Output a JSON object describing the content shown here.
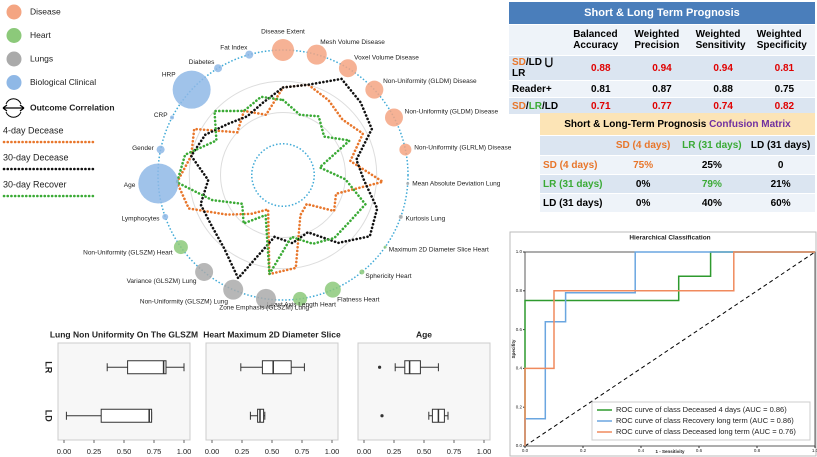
{
  "chart_data": [
    {
      "type": "radar",
      "groups": [
        {
          "name": "Disease",
          "color": "#f4a582"
        },
        {
          "name": "Heart",
          "color": "#8cc97a"
        },
        {
          "name": "Lungs",
          "color": "#aaaaaa"
        },
        {
          "name": "Biological Clinical",
          "color": "#8fb8e6"
        }
      ],
      "outcome_label": "Outcome Correlation",
      "features": [
        "Disease Extent",
        "Mesh Volume Disease",
        "Voxel Volume Disease",
        "Non-Uniformity (GLDM) Disease",
        "Non-Uniformity (GLDM) Disease",
        "Non-Uniformity (GLRLM) Disease",
        "Mean Absolute Deviation Lung",
        "Kurtosis Lung",
        "Maximum 2D Diameter Slice Heart",
        "Sphericity Heart",
        "Flatness Heart",
        "Least Axis Length Heart",
        "Zone Emphasis (GLSZM) Lung",
        "Non-Uniformity (GLSZM) Lung",
        "Variance (GLSZM) Lung",
        "Non-Uniformity (GLSZM) Heart",
        "Lymphocytes",
        "Age",
        "Gender",
        "CRP",
        "HRP",
        "Diabetes",
        "Fat Index"
      ],
      "feature_groups": [
        "Disease",
        "Disease",
        "Disease",
        "Disease",
        "Disease",
        "Disease",
        "Lungs",
        "Lungs",
        "Heart",
        "Heart",
        "Heart",
        "Heart",
        "Lungs",
        "Lungs",
        "Lungs",
        "Heart",
        "Biological Clinical",
        "Biological Clinical",
        "Biological Clinical",
        "Biological Clinical",
        "Biological Clinical",
        "Biological Clinical",
        "Biological Clinical"
      ],
      "sizes": [
        11,
        10,
        9,
        9,
        9,
        6,
        1.5,
        2,
        1.5,
        2.5,
        8,
        7,
        10,
        10,
        9,
        7,
        3,
        20,
        4,
        2,
        19,
        4,
        4
      ],
      "rlim": [
        0,
        1
      ],
      "rticks": [
        0.25,
        0.5,
        0.75
      ],
      "series": [
        {
          "name": "4-day Decease",
          "color": "#e8762b",
          "values": [
            0.7,
            0.75,
            0.7,
            0.65,
            0.72,
            0.55,
            0.8,
            0.45,
            0.5,
            0.3,
            0.35,
            0.75,
            0.8,
            0.3,
            0.4,
            0.55,
            0.8,
            0.85,
            0.75,
            0.8,
            0.5,
            0.6,
            0.5
          ]
        },
        {
          "name": "30-day Decease",
          "color": "#111111",
          "values": [
            0.7,
            0.75,
            0.9,
            0.85,
            0.8,
            0.6,
            0.65,
            0.8,
            0.85,
            0.7,
            0.5,
            0.55,
            0.5,
            0.9,
            0.75,
            0.7,
            0.7,
            0.6,
            0.75,
            0.7,
            0.6,
            0.55,
            0.6
          ]
        },
        {
          "name": "30-day Recover",
          "color": "#3aaa35",
          "values": [
            0.6,
            0.5,
            0.55,
            0.45,
            0.6,
            0.3,
            0.5,
            0.7,
            0.65,
            0.65,
            0.6,
            0.5,
            0.8,
            0.35,
            0.5,
            0.4,
            0.6,
            0.85,
            0.8,
            0.6,
            0.75,
            0.6,
            0.65
          ]
        }
      ]
    },
    {
      "type": "box",
      "title": "Lung Non Uniformity On The GLSZM",
      "categories": [
        "LR",
        "LD"
      ],
      "boxes": [
        {
          "whislo": 0.36,
          "q1": 0.53,
          "med": 0.83,
          "q3": 0.85,
          "whishi": 1.0,
          "outliers": []
        },
        {
          "whislo": 0.02,
          "q1": 0.31,
          "med": 0.71,
          "q3": 0.73,
          "whishi": 0.73,
          "outliers": []
        }
      ],
      "xlim": [
        -0.05,
        1.05
      ],
      "xticks": [
        {
          "value": 0,
          "label": "0.00"
        },
        0.25,
        {
          "value": 0.5,
          "label": "0.50"
        },
        0.75,
        {
          "value": 1,
          "label": "1.00"
        }
      ]
    },
    {
      "type": "box",
      "title": "Heart Maximum 2D Diameter Slice",
      "boxes": [
        {
          "whislo": 0.24,
          "q1": 0.42,
          "med": 0.51,
          "q3": 0.66,
          "whishi": 0.77,
          "outliers": []
        },
        {
          "whislo": 0.32,
          "q1": 0.38,
          "med": 0.4,
          "q3": 0.43,
          "whishi": 0.44,
          "outliers": []
        }
      ],
      "xlim": [
        -0.05,
        1.05
      ],
      "xticks": [
        {
          "value": 0,
          "label": "0.00"
        },
        0.25,
        {
          "value": 0.5,
          "label": "0.50"
        },
        0.75,
        {
          "value": 1,
          "label": "1.00"
        }
      ]
    },
    {
      "type": "box",
      "title": "Age",
      "boxes": [
        {
          "whislo": 0.26,
          "q1": 0.34,
          "med": 0.38,
          "q3": 0.47,
          "whishi": 0.62,
          "outliers": [
            0.13
          ]
        },
        {
          "whislo": 0.54,
          "q1": 0.57,
          "med": 0.62,
          "q3": 0.67,
          "whishi": 0.7,
          "outliers": [
            0.15
          ]
        }
      ],
      "xlim": [
        -0.05,
        1.05
      ],
      "xticks": [
        {
          "value": 0,
          "label": "0.00"
        },
        0.25,
        {
          "value": 0.5,
          "label": "0.50"
        },
        0.75,
        {
          "value": 1,
          "label": "1.00"
        }
      ]
    },
    {
      "type": "roc",
      "title": "Hierarchical Classification",
      "x_label": "1 - Sensitivity",
      "y_label": "Specifity",
      "xlim": [
        0,
        1
      ],
      "ylim": [
        0,
        1
      ],
      "xticks": [
        {
          "value": 0,
          "label": "0.0"
        },
        0.2,
        0.4,
        0.6,
        0.8,
        {
          "value": 1,
          "label": "1.0"
        }
      ],
      "yticks": [
        {
          "value": 0,
          "label": "0.0"
        },
        0.2,
        0.4,
        0.6,
        0.8,
        {
          "value": 1,
          "label": "1.0"
        }
      ],
      "series": [
        {
          "name": "ROC curve of class Deceased 4 days (AUC = 0.86)",
          "color": "#2e9a2e",
          "x": [
            0,
            0,
            0.53,
            0.53,
            0.64,
            0.64,
            1
          ],
          "values": [
            0,
            0.75,
            0.75,
            0.875,
            0.875,
            1,
            1
          ]
        },
        {
          "name": "ROC curve of class Recovery long term (AUC = 0.86)",
          "color": "#6aa6e0",
          "x": [
            0,
            0,
            0.07,
            0.07,
            0.14,
            0.14,
            0.38,
            0.38,
            1
          ],
          "values": [
            0,
            0.14,
            0.14,
            0.64,
            0.64,
            0.79,
            0.79,
            1,
            1
          ]
        },
        {
          "name": "ROC curve of class Deceased long term (AUC = 0.76)",
          "color": "#f08a5d",
          "x": [
            0,
            0,
            0.1,
            0.1,
            0.72,
            0.72,
            1
          ],
          "values": [
            0,
            0.4,
            0.4,
            0.8,
            0.8,
            1,
            1
          ]
        }
      ]
    }
  ],
  "prognosis_table": {
    "title": "Short & Long Term Prognosis",
    "columns": [
      "Balanced Accuracy",
      "Weighted Precision",
      "Weighted Sensitivity",
      "Weighted Specificity"
    ],
    "rows": [
      {
        "label_parts": [
          {
            "text": "SD",
            "color": "#e8762b"
          },
          {
            "text": "/LD ⋃ LR",
            "color": "#000000"
          }
        ],
        "color": "#e00000",
        "values": [
          0.88,
          0.94,
          0.94,
          0.81
        ]
      },
      {
        "label_parts": [
          {
            "text": "Reader+",
            "color": "#000000"
          }
        ],
        "color": "#000000",
        "values": [
          0.81,
          0.87,
          0.88,
          0.75
        ]
      },
      {
        "label_parts": [
          {
            "text": "SD",
            "color": "#e8762b"
          },
          {
            "text": "/",
            "color": "#000000"
          },
          {
            "text": "LR",
            "color": "#3aaa35"
          },
          {
            "text": "/LD",
            "color": "#000000"
          }
        ],
        "color": "#e00000",
        "values": [
          0.71,
          0.77,
          0.74,
          0.82
        ]
      }
    ]
  },
  "confusion_table": {
    "title_parts": [
      {
        "text": "Short & Long-Term Prognosis",
        "color": "#000000"
      },
      {
        "text": "Confusion Matrix",
        "color": "#7030a0"
      }
    ],
    "columns": [
      {
        "text": "SD (4 days)",
        "color": "#e8762b"
      },
      {
        "text": "LR (31 days)",
        "color": "#3aaa35"
      },
      {
        "text": "LD (31 days)",
        "color": "#000000"
      }
    ],
    "rows": [
      {
        "label": {
          "text": "SD (4 days)",
          "color": "#e8762b"
        },
        "cells": [
          {
            "text": "75%",
            "color": "#e8762b"
          },
          {
            "text": "25%",
            "color": "#000000"
          },
          {
            "text": "0",
            "color": "#000000"
          }
        ]
      },
      {
        "label": {
          "text": "LR (31 days)",
          "color": "#3aaa35"
        },
        "cells": [
          {
            "text": "0%",
            "color": "#000000"
          },
          {
            "text": "79%",
            "color": "#3aaa35"
          },
          {
            "text": "21%",
            "color": "#000000"
          }
        ]
      },
      {
        "label": {
          "text": "LD (31 days)",
          "color": "#000000"
        },
        "cells": [
          {
            "text": "0%",
            "color": "#000000"
          },
          {
            "text": "40%",
            "color": "#000000"
          },
          {
            "text": "60%",
            "color": "#000000"
          }
        ]
      }
    ]
  }
}
